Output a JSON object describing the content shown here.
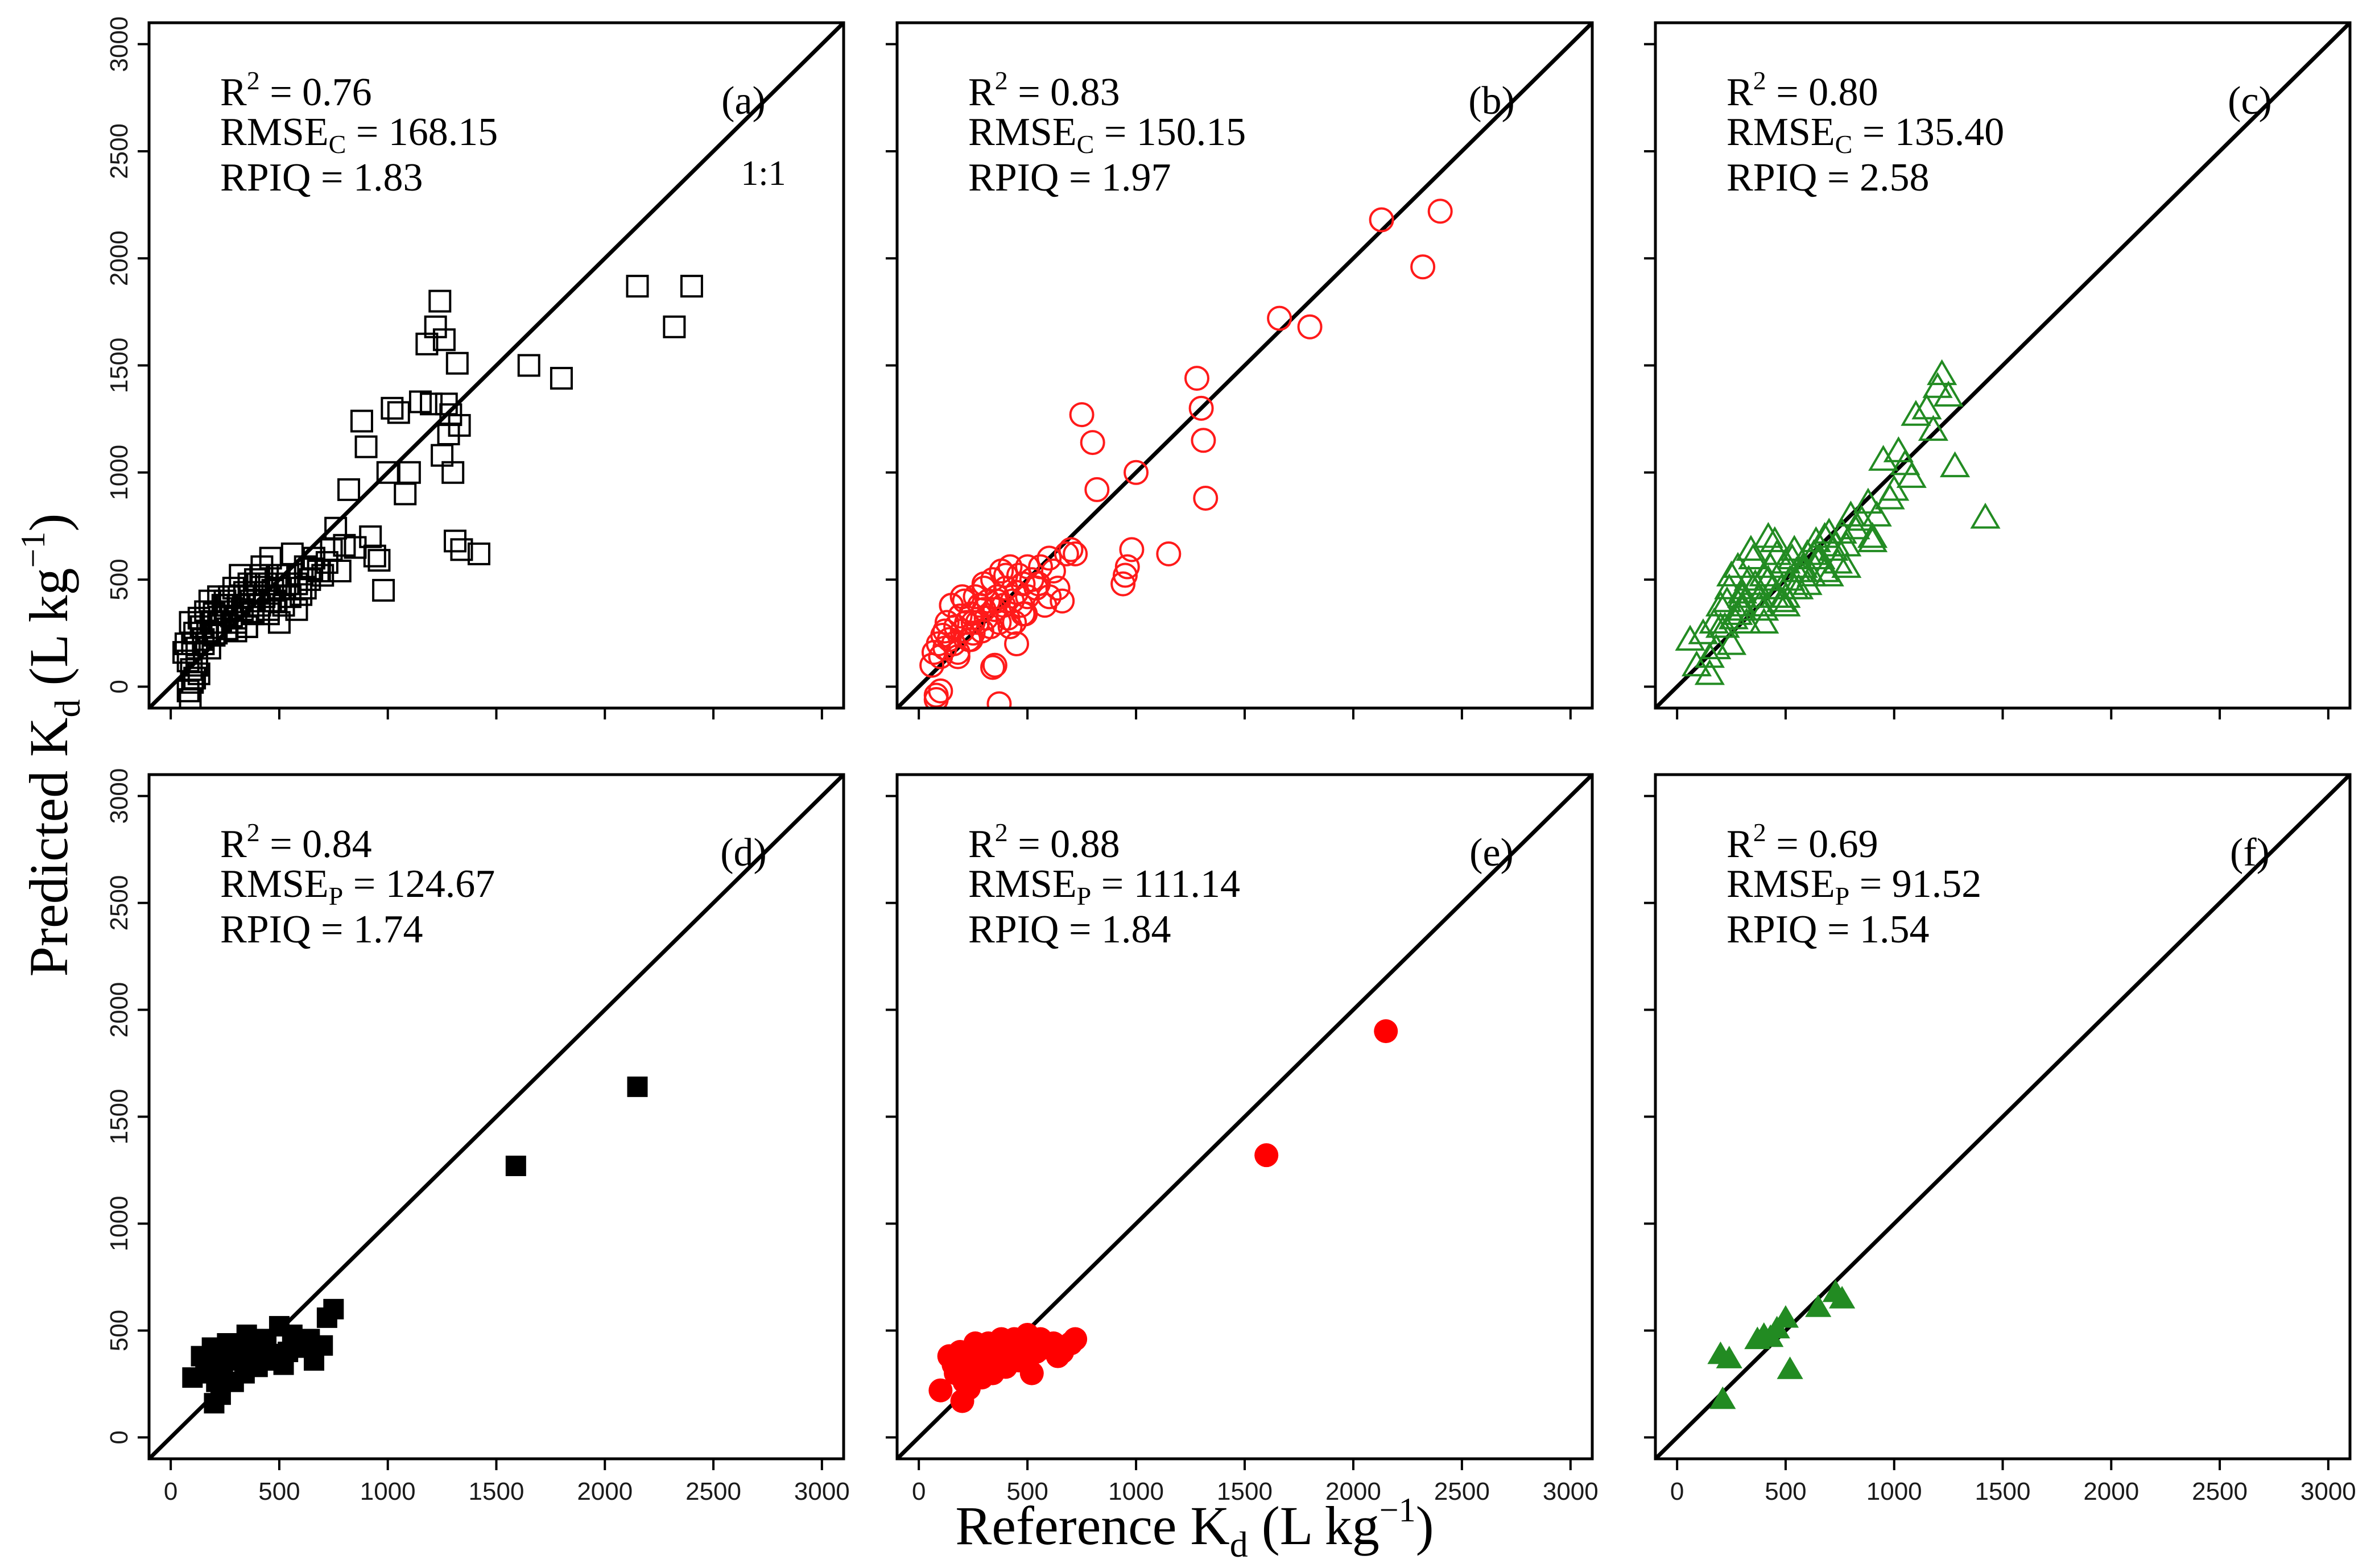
{
  "chart_data": [
    {
      "panel": "(a)",
      "type": "scatter",
      "marker": "square-open",
      "color": "#000000",
      "stats": {
        "r2_base": "R",
        "r2_sup": "2",
        "r2_rest": " = 0.76",
        "rmse_base": "RMSE",
        "rmse_sub": "C",
        "rmse_rest": " = 168.15",
        "rpiq": "RPIQ = 1.83"
      },
      "ref_line_label": "1:1",
      "x": [
        60,
        70,
        80,
        90,
        95,
        100,
        110,
        120,
        130,
        140,
        150,
        160,
        170,
        180,
        190,
        200,
        210,
        220,
        230,
        240,
        250,
        260,
        270,
        280,
        290,
        300,
        310,
        320,
        330,
        340,
        350,
        360,
        370,
        380,
        390,
        400,
        410,
        420,
        430,
        440,
        450,
        460,
        470,
        480,
        490,
        500,
        520,
        540,
        560,
        580,
        600,
        620,
        640,
        660,
        680,
        700,
        720,
        740,
        100,
        120,
        150,
        200,
        250,
        300,
        350,
        400,
        450,
        500,
        550,
        600,
        650,
        180,
        220,
        260,
        300,
        340,
        380,
        420,
        460,
        500,
        540,
        580,
        620,
        760,
        780,
        800,
        820,
        850,
        880,
        900,
        920,
        940,
        960,
        980,
        1000,
        1020,
        1050,
        1080,
        1100,
        1150,
        1180,
        1200,
        1220,
        1240,
        1250,
        1260,
        1270,
        1280,
        1290,
        1300,
        1310,
        1320,
        1330,
        1340,
        1420,
        1650,
        1800,
        2150,
        2320,
        2400,
        80,
        90,
        110,
        130
      ],
      "y": [
        160,
        200,
        120,
        300,
        80,
        200,
        250,
        180,
        320,
        280,
        200,
        350,
        260,
        400,
        300,
        340,
        250,
        420,
        300,
        380,
        350,
        270,
        420,
        330,
        460,
        300,
        380,
        520,
        360,
        420,
        280,
        480,
        400,
        350,
        500,
        440,
        380,
        560,
        420,
        480,
        340,
        600,
        450,
        400,
        520,
        460,
        380,
        520,
        620,
        480,
        430,
        560,
        500,
        600,
        540,
        520,
        580,
        640,
        20,
        100,
        220,
        240,
        400,
        320,
        280,
        480,
        360,
        520,
        420,
        460,
        550,
        180,
        300,
        380,
        260,
        440,
        340,
        520,
        400,
        300,
        480,
        360,
        460,
        740,
        540,
        660,
        920,
        650,
        1240,
        1120,
        700,
        610,
        590,
        450,
        1000,
        1300,
        1280,
        900,
        1000,
        1330,
        1600,
        1320,
        1680,
        1800,
        1080,
        1620,
        1320,
        1180,
        1270,
        1000,
        680,
        1510,
        1220,
        640,
        620,
        1500,
        1440,
        1870,
        1680,
        1870,
        -20,
        -60,
        40,
        60
      ]
    },
    {
      "panel": "(b)",
      "type": "scatter",
      "marker": "circle-open",
      "color": "#ff1a1a",
      "stats": {
        "r2_base": "R",
        "r2_sup": "2",
        "r2_rest": " = 0.83",
        "rmse_base": "RMSE",
        "rmse_sub": "C",
        "rmse_rest": " = 150.15",
        "rpiq": "RPIQ = 1.97"
      },
      "x": [
        60,
        70,
        80,
        90,
        100,
        110,
        120,
        130,
        140,
        150,
        160,
        170,
        180,
        190,
        200,
        210,
        220,
        230,
        240,
        250,
        260,
        270,
        280,
        290,
        300,
        310,
        320,
        330,
        340,
        350,
        360,
        370,
        380,
        390,
        400,
        410,
        420,
        430,
        440,
        450,
        460,
        470,
        480,
        490,
        500,
        520,
        540,
        560,
        580,
        600,
        620,
        640,
        660,
        680,
        700,
        720,
        150,
        200,
        250,
        300,
        350,
        400,
        450,
        500,
        550,
        120,
        180,
        240,
        300,
        360,
        420,
        480,
        540,
        600,
        80,
        100,
        340,
        370,
        750,
        800,
        820,
        940,
        950,
        960,
        980,
        1000,
        1150,
        1280,
        1300,
        1310,
        1320,
        1660,
        1800,
        2130,
        2320,
        2400,
        350,
        450
      ],
      "y": [
        100,
        160,
        -40,
        200,
        140,
        240,
        180,
        300,
        220,
        380,
        200,
        280,
        160,
        330,
        260,
        400,
        300,
        220,
        340,
        250,
        420,
        300,
        380,
        260,
        460,
        320,
        400,
        280,
        500,
        360,
        420,
        300,
        540,
        380,
        460,
        320,
        560,
        400,
        300,
        440,
        520,
        380,
        480,
        340,
        420,
        500,
        460,
        560,
        380,
        600,
        540,
        460,
        400,
        620,
        640,
        620,
        380,
        420,
        300,
        480,
        360,
        520,
        440,
        560,
        480,
        260,
        140,
        220,
        360,
        400,
        280,
        340,
        460,
        420,
        -60,
        -20,
        90,
        -80,
        1270,
        1140,
        920,
        480,
        520,
        560,
        640,
        1000,
        620,
        1440,
        1300,
        1150,
        880,
        1720,
        1680,
        2180,
        1960,
        2220,
        100,
        200
      ]
    },
    {
      "panel": "(c)",
      "type": "scatter",
      "marker": "triangle-open",
      "color": "#228b22",
      "stats": {
        "r2_base": "R",
        "r2_sup": "2",
        "r2_rest": " = 0.80",
        "rmse_base": "RMSE",
        "rmse_sub": "C",
        "rmse_rest": " = 135.40",
        "rpiq": "RPIQ = 2.58"
      },
      "x": [
        60,
        90,
        120,
        150,
        180,
        200,
        220,
        240,
        260,
        280,
        300,
        320,
        340,
        360,
        380,
        400,
        420,
        440,
        460,
        480,
        500,
        520,
        540,
        560,
        580,
        600,
        620,
        640,
        660,
        680,
        700,
        720,
        740,
        760,
        780,
        800,
        820,
        850,
        880,
        900,
        920,
        950,
        980,
        1000,
        1020,
        1050,
        1080,
        1100,
        1150,
        1180,
        1200,
        1220,
        1250,
        1280,
        1420,
        150,
        200,
        250,
        300,
        350,
        400,
        450,
        500,
        550,
        600,
        650,
        700,
        250,
        300,
        350,
        400,
        450,
        500,
        170,
        230,
        280,
        330,
        380,
        430,
        480,
        530,
        580,
        630,
        680,
        730,
        300,
        420,
        540,
        660,
        780,
        900
      ],
      "y": [
        220,
        100,
        250,
        60,
        180,
        380,
        280,
        460,
        320,
        560,
        420,
        300,
        640,
        480,
        380,
        520,
        700,
        460,
        620,
        400,
        580,
        500,
        640,
        460,
        560,
        620,
        520,
        680,
        600,
        540,
        720,
        640,
        580,
        720,
        660,
        800,
        740,
        780,
        860,
        680,
        800,
        1060,
        880,
        920,
        1100,
        1040,
        980,
        1270,
        1300,
        1200,
        1400,
        1460,
        1360,
        1030,
        790,
        140,
        280,
        200,
        360,
        460,
        300,
        420,
        380,
        540,
        480,
        600,
        520,
        520,
        440,
        600,
        360,
        680,
        420,
        300,
        400,
        340,
        500,
        420,
        560,
        460,
        600,
        540,
        620,
        700,
        660,
        380,
        500,
        460,
        600,
        560,
        700
      ]
    },
    {
      "panel": "(d)",
      "type": "scatter",
      "marker": "square-filled",
      "color": "#000000",
      "stats": {
        "r2_base": "R",
        "r2_sup": "2",
        "r2_rest": " = 0.84",
        "rmse_base": "RMSE",
        "rmse_sub": "P",
        "rmse_rest": " = 124.67",
        "rpiq": "RPIQ = 1.74"
      },
      "x": [
        100,
        140,
        170,
        190,
        200,
        210,
        220,
        230,
        240,
        250,
        270,
        290,
        300,
        320,
        340,
        350,
        370,
        390,
        400,
        420,
        440,
        460,
        480,
        500,
        520,
        540,
        560,
        600,
        620,
        640,
        660,
        700,
        720,
        750,
        160,
        260,
        380,
        480,
        580,
        1590,
        2150
      ],
      "y": [
        280,
        380,
        300,
        420,
        160,
        260,
        340,
        200,
        300,
        400,
        420,
        260,
        360,
        440,
        300,
        480,
        380,
        400,
        330,
        420,
        460,
        360,
        380,
        520,
        340,
        400,
        480,
        420,
        450,
        460,
        360,
        430,
        560,
        600,
        340,
        440,
        460,
        390,
        420,
        1270,
        1640
      ]
    },
    {
      "panel": "(e)",
      "type": "scatter",
      "marker": "circle-filled",
      "color": "#ff0000",
      "stats": {
        "r2_base": "R",
        "r2_sup": "2",
        "r2_rest": " = 0.88",
        "rmse_base": "RMSE",
        "rmse_sub": "P",
        "rmse_rest": " = 111.14",
        "rpiq": "RPIQ = 1.84"
      },
      "x": [
        100,
        140,
        170,
        190,
        200,
        210,
        220,
        230,
        240,
        250,
        270,
        290,
        300,
        320,
        340,
        350,
        370,
        390,
        400,
        420,
        440,
        460,
        480,
        500,
        520,
        540,
        560,
        600,
        620,
        640,
        660,
        700,
        720,
        160,
        260,
        380,
        480,
        580,
        1600,
        2150
      ],
      "y": [
        220,
        380,
        300,
        400,
        170,
        260,
        340,
        230,
        300,
        400,
        360,
        280,
        380,
        440,
        300,
        420,
        380,
        400,
        330,
        420,
        460,
        360,
        380,
        480,
        300,
        400,
        460,
        420,
        440,
        380,
        400,
        440,
        460,
        340,
        440,
        460,
        390,
        420,
        1320,
        1900
      ]
    },
    {
      "panel": "(f)",
      "type": "scatter",
      "marker": "triangle-filled",
      "color": "#228b22",
      "stats": {
        "r2_base": "R",
        "r2_sup": "2",
        "r2_rest": " = 0.69",
        "rmse_base": "RMSE",
        "rmse_sub": "P",
        "rmse_rest": " = 91.52",
        "rpiq": "RPIQ = 1.54"
      },
      "x": [
        200,
        210,
        240,
        370,
        400,
        430,
        460,
        500,
        520,
        650,
        730,
        760
      ],
      "y": [
        390,
        180,
        370,
        460,
        480,
        470,
        510,
        560,
        320,
        610,
        680,
        650
      ]
    }
  ],
  "axes": {
    "xlim": [
      -100,
      3100
    ],
    "ylim": [
      -100,
      3100
    ],
    "ticks": [
      0,
      500,
      1000,
      1500,
      2000,
      2500,
      3000
    ],
    "tick_labels": [
      "0",
      "500",
      "1000",
      "1500",
      "2000",
      "2500",
      "3000"
    ]
  },
  "labels": {
    "y_base": "Predicted K",
    "y_sub": "d",
    "y_unit_open": " (L kg",
    "y_unit_sup": "−1",
    "y_unit_close": ")",
    "x_base": "Reference K",
    "x_sub": "d",
    "x_unit_open": " (L kg",
    "x_unit_sup": "−1",
    "x_unit_close": ")"
  }
}
